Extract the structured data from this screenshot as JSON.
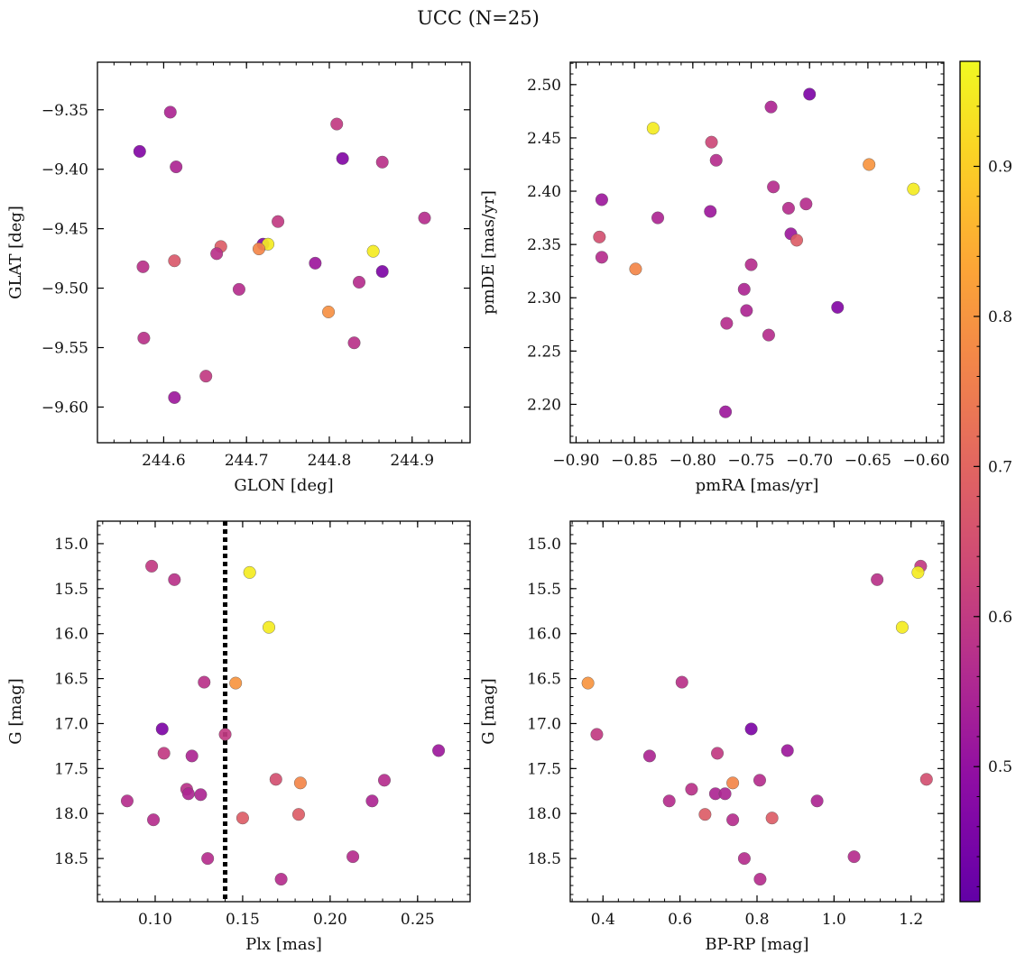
{
  "figure": {
    "title": "UCC (N=25)"
  },
  "chart_data": [
    {
      "type": "scatter",
      "id": "sky",
      "xlabel": "GLON [deg]",
      "ylabel": "GLAT [deg]",
      "xlim": [
        244.52,
        244.97
      ],
      "ylim": [
        -9.63,
        -9.31
      ],
      "xticks": [
        244.6,
        244.7,
        244.8,
        244.9
      ],
      "xtick_labels": [
        "244.6",
        "244.7",
        "244.8",
        "244.9"
      ],
      "yticks": [
        -9.35,
        -9.4,
        -9.45,
        -9.5,
        -9.55,
        -9.6
      ],
      "ytick_labels": [
        "−9.35",
        "−9.40",
        "−9.45",
        "−9.50",
        "−9.55",
        "−9.60"
      ],
      "y_inverted": false,
      "points": [
        {
          "x": 244.608,
          "y": -9.352,
          "c": 0.55
        },
        {
          "x": 244.571,
          "y": -9.385,
          "c": 0.47
        },
        {
          "x": 244.615,
          "y": -9.398,
          "c": 0.55
        },
        {
          "x": 244.809,
          "y": -9.362,
          "c": 0.6
        },
        {
          "x": 244.816,
          "y": -9.391,
          "c": 0.47
        },
        {
          "x": 244.864,
          "y": -9.394,
          "c": 0.58
        },
        {
          "x": 244.915,
          "y": -9.441,
          "c": 0.57
        },
        {
          "x": 244.738,
          "y": -9.444,
          "c": 0.6
        },
        {
          "x": 244.669,
          "y": -9.465,
          "c": 0.68
        },
        {
          "x": 244.72,
          "y": -9.463,
          "c": 0.47
        },
        {
          "x": 244.726,
          "y": -9.463,
          "c": 0.95
        },
        {
          "x": 244.715,
          "y": -9.467,
          "c": 0.77
        },
        {
          "x": 244.853,
          "y": -9.469,
          "c": 0.95
        },
        {
          "x": 244.664,
          "y": -9.471,
          "c": 0.58
        },
        {
          "x": 244.613,
          "y": -9.477,
          "c": 0.67
        },
        {
          "x": 244.575,
          "y": -9.482,
          "c": 0.58
        },
        {
          "x": 244.783,
          "y": -9.479,
          "c": 0.52
        },
        {
          "x": 244.864,
          "y": -9.486,
          "c": 0.46
        },
        {
          "x": 244.836,
          "y": -9.495,
          "c": 0.57
        },
        {
          "x": 244.691,
          "y": -9.501,
          "c": 0.57
        },
        {
          "x": 244.799,
          "y": -9.52,
          "c": 0.79
        },
        {
          "x": 244.576,
          "y": -9.542,
          "c": 0.58
        },
        {
          "x": 244.83,
          "y": -9.546,
          "c": 0.58
        },
        {
          "x": 244.651,
          "y": -9.574,
          "c": 0.6
        },
        {
          "x": 244.613,
          "y": -9.592,
          "c": 0.52
        }
      ]
    },
    {
      "type": "scatter",
      "id": "pm",
      "xlabel": "pmRA [mas/yr]",
      "ylabel": "pmDE [mas/yr]",
      "xlim": [
        -0.905,
        -0.585
      ],
      "ylim": [
        2.164,
        2.521
      ],
      "xticks": [
        -0.9,
        -0.85,
        -0.8,
        -0.75,
        -0.7,
        -0.65,
        -0.6
      ],
      "xtick_labels": [
        "−0.90",
        "−0.85",
        "−0.80",
        "−0.75",
        "−0.70",
        "−0.65",
        "−0.60"
      ],
      "yticks": [
        2.2,
        2.25,
        2.3,
        2.35,
        2.4,
        2.45,
        2.5
      ],
      "ytick_labels": [
        "2.20",
        "2.25",
        "2.30",
        "2.35",
        "2.40",
        "2.45",
        "2.50"
      ],
      "y_inverted": false,
      "points": [
        {
          "x": -0.7,
          "y": 2.491,
          "c": 0.46
        },
        {
          "x": -0.733,
          "y": 2.479,
          "c": 0.55
        },
        {
          "x": -0.834,
          "y": 2.459,
          "c": 0.95
        },
        {
          "x": -0.784,
          "y": 2.446,
          "c": 0.63
        },
        {
          "x": -0.78,
          "y": 2.429,
          "c": 0.57
        },
        {
          "x": -0.649,
          "y": 2.425,
          "c": 0.8
        },
        {
          "x": -0.611,
          "y": 2.402,
          "c": 0.95
        },
        {
          "x": -0.731,
          "y": 2.404,
          "c": 0.57
        },
        {
          "x": -0.878,
          "y": 2.392,
          "c": 0.52
        },
        {
          "x": -0.703,
          "y": 2.388,
          "c": 0.57
        },
        {
          "x": -0.718,
          "y": 2.384,
          "c": 0.57
        },
        {
          "x": -0.785,
          "y": 2.381,
          "c": 0.52
        },
        {
          "x": -0.83,
          "y": 2.375,
          "c": 0.55
        },
        {
          "x": -0.716,
          "y": 2.36,
          "c": 0.52
        },
        {
          "x": -0.88,
          "y": 2.357,
          "c": 0.65
        },
        {
          "x": -0.711,
          "y": 2.354,
          "c": 0.68
        },
        {
          "x": -0.878,
          "y": 2.338,
          "c": 0.57
        },
        {
          "x": -0.75,
          "y": 2.331,
          "c": 0.57
        },
        {
          "x": -0.849,
          "y": 2.327,
          "c": 0.77
        },
        {
          "x": -0.756,
          "y": 2.308,
          "c": 0.55
        },
        {
          "x": -0.676,
          "y": 2.291,
          "c": 0.47
        },
        {
          "x": -0.754,
          "y": 2.288,
          "c": 0.55
        },
        {
          "x": -0.771,
          "y": 2.276,
          "c": 0.57
        },
        {
          "x": -0.735,
          "y": 2.265,
          "c": 0.57
        },
        {
          "x": -0.772,
          "y": 2.193,
          "c": 0.52
        }
      ]
    },
    {
      "type": "scatter",
      "id": "plx",
      "xlabel": "Plx [mas]",
      "ylabel": "G [mag]",
      "xlim": [
        0.067,
        0.28
      ],
      "ylim": [
        14.75,
        18.98
      ],
      "xticks": [
        0.1,
        0.15,
        0.2,
        0.25
      ],
      "xtick_labels": [
        "0.10",
        "0.15",
        "0.20",
        "0.25"
      ],
      "yticks": [
        15.0,
        15.5,
        16.0,
        16.5,
        17.0,
        17.5,
        18.0,
        18.5
      ],
      "ytick_labels": [
        "15.0",
        "15.5",
        "16.0",
        "16.5",
        "17.0",
        "17.5",
        "18.0",
        "18.5"
      ],
      "y_inverted": true,
      "vline": {
        "x": 0.14
      },
      "points": [
        {
          "x": 0.098,
          "y": 15.25,
          "c": 0.6
        },
        {
          "x": 0.111,
          "y": 15.4,
          "c": 0.58
        },
        {
          "x": 0.154,
          "y": 15.32,
          "c": 0.95
        },
        {
          "x": 0.165,
          "y": 15.93,
          "c": 0.95
        },
        {
          "x": 0.128,
          "y": 16.54,
          "c": 0.58
        },
        {
          "x": 0.146,
          "y": 16.55,
          "c": 0.8
        },
        {
          "x": 0.104,
          "y": 17.06,
          "c": 0.46
        },
        {
          "x": 0.14,
          "y": 17.12,
          "c": 0.6
        },
        {
          "x": 0.105,
          "y": 17.33,
          "c": 0.6
        },
        {
          "x": 0.121,
          "y": 17.36,
          "c": 0.55
        },
        {
          "x": 0.262,
          "y": 17.3,
          "c": 0.52
        },
        {
          "x": 0.169,
          "y": 17.62,
          "c": 0.65
        },
        {
          "x": 0.183,
          "y": 17.66,
          "c": 0.77
        },
        {
          "x": 0.231,
          "y": 17.63,
          "c": 0.57
        },
        {
          "x": 0.118,
          "y": 17.73,
          "c": 0.58
        },
        {
          "x": 0.119,
          "y": 17.78,
          "c": 0.55
        },
        {
          "x": 0.126,
          "y": 17.79,
          "c": 0.55
        },
        {
          "x": 0.084,
          "y": 17.86,
          "c": 0.57
        },
        {
          "x": 0.224,
          "y": 17.86,
          "c": 0.55
        },
        {
          "x": 0.099,
          "y": 18.07,
          "c": 0.57
        },
        {
          "x": 0.15,
          "y": 18.05,
          "c": 0.68
        },
        {
          "x": 0.182,
          "y": 18.01,
          "c": 0.68
        },
        {
          "x": 0.13,
          "y": 18.5,
          "c": 0.57
        },
        {
          "x": 0.213,
          "y": 18.48,
          "c": 0.57
        },
        {
          "x": 0.172,
          "y": 18.73,
          "c": 0.57
        }
      ]
    },
    {
      "type": "scatter",
      "id": "cmd",
      "xlabel": "BP-RP [mag]",
      "ylabel": "G [mag]",
      "xlim": [
        0.315,
        1.285
      ],
      "ylim": [
        14.75,
        18.98
      ],
      "xticks": [
        0.4,
        0.6,
        0.8,
        1.0,
        1.2
      ],
      "xtick_labels": [
        "0.4",
        "0.6",
        "0.8",
        "1.0",
        "1.2"
      ],
      "yticks": [
        15.0,
        15.5,
        16.0,
        16.5,
        17.0,
        17.5,
        18.0,
        18.5
      ],
      "ytick_labels": [
        "15.0",
        "15.5",
        "16.0",
        "16.5",
        "17.0",
        "17.5",
        "18.0",
        "18.5"
      ],
      "y_inverted": true,
      "points": [
        {
          "x": 1.225,
          "y": 15.25,
          "c": 0.6
        },
        {
          "x": 1.112,
          "y": 15.4,
          "c": 0.58
        },
        {
          "x": 1.218,
          "y": 15.32,
          "c": 0.95
        },
        {
          "x": 1.177,
          "y": 15.93,
          "c": 0.95
        },
        {
          "x": 0.605,
          "y": 16.54,
          "c": 0.58
        },
        {
          "x": 0.361,
          "y": 16.55,
          "c": 0.8
        },
        {
          "x": 0.785,
          "y": 17.06,
          "c": 0.46
        },
        {
          "x": 0.384,
          "y": 17.12,
          "c": 0.6
        },
        {
          "x": 0.697,
          "y": 17.33,
          "c": 0.6
        },
        {
          "x": 0.521,
          "y": 17.36,
          "c": 0.55
        },
        {
          "x": 0.879,
          "y": 17.3,
          "c": 0.52
        },
        {
          "x": 1.24,
          "y": 17.62,
          "c": 0.65
        },
        {
          "x": 0.737,
          "y": 17.66,
          "c": 0.77
        },
        {
          "x": 0.807,
          "y": 17.63,
          "c": 0.57
        },
        {
          "x": 0.63,
          "y": 17.73,
          "c": 0.58
        },
        {
          "x": 0.692,
          "y": 17.78,
          "c": 0.55
        },
        {
          "x": 0.717,
          "y": 17.78,
          "c": 0.55
        },
        {
          "x": 0.572,
          "y": 17.86,
          "c": 0.57
        },
        {
          "x": 0.956,
          "y": 17.86,
          "c": 0.55
        },
        {
          "x": 0.737,
          "y": 18.07,
          "c": 0.57
        },
        {
          "x": 0.839,
          "y": 18.05,
          "c": 0.68
        },
        {
          "x": 0.665,
          "y": 18.01,
          "c": 0.68
        },
        {
          "x": 0.767,
          "y": 18.5,
          "c": 0.57
        },
        {
          "x": 1.052,
          "y": 18.48,
          "c": 0.57
        },
        {
          "x": 0.808,
          "y": 18.73,
          "c": 0.57
        }
      ]
    }
  ],
  "colorbar": {
    "colormap": "plasma",
    "vmin": 0.41,
    "vmax": 0.97,
    "ticks": [
      0.5,
      0.6,
      0.7,
      0.8,
      0.9
    ],
    "tick_labels": [
      "0.5",
      "0.6",
      "0.7",
      "0.8",
      "0.9"
    ]
  }
}
